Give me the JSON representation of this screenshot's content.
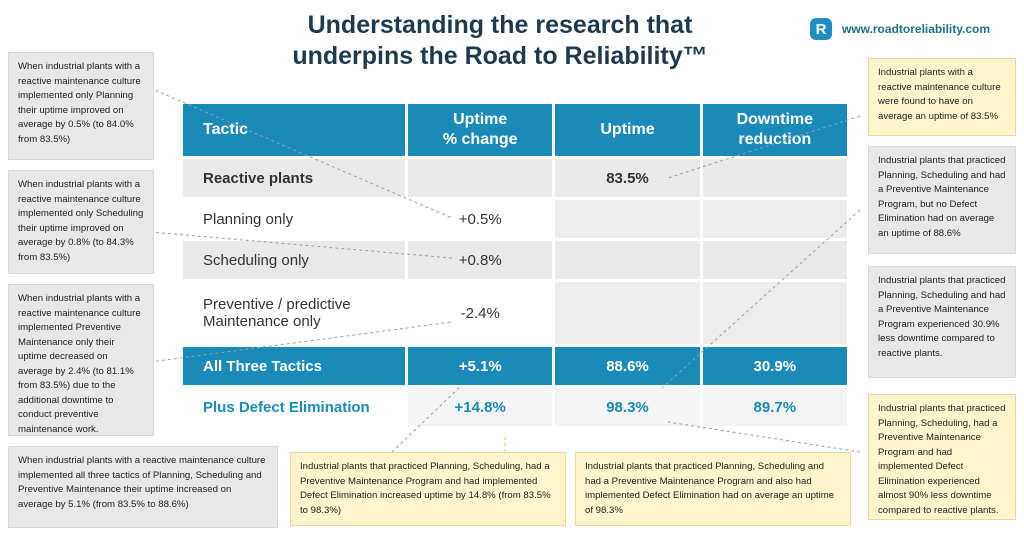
{
  "title": {
    "line1": "Understanding the research that",
    "line2": "underpins the Road to Reliability™"
  },
  "brand": {
    "logo_letter": "R",
    "url": "www.roadtoreliability.com"
  },
  "table": {
    "headers": [
      "Tactic",
      "Uptime\n% change",
      "Uptime",
      "Downtime\nreduction"
    ],
    "header_lines": [
      [
        "Tactic"
      ],
      [
        "Uptime",
        "% change"
      ],
      [
        "Uptime"
      ],
      [
        "Downtime",
        "reduction"
      ]
    ],
    "rows": [
      {
        "tactic": "Reactive plants",
        "change": "",
        "uptime": "83.5%",
        "reduction": ""
      },
      {
        "tactic": "Planning only",
        "change": "+0.5%",
        "uptime": "",
        "reduction": ""
      },
      {
        "tactic": "Scheduling only",
        "change": "+0.8%",
        "uptime": "",
        "reduction": ""
      },
      {
        "tactic_line1": "Preventive / predictive",
        "tactic_line2": "Maintenance only",
        "change": "-2.4%",
        "uptime": "",
        "reduction": ""
      },
      {
        "tactic": "All Three Tactics",
        "change": "+5.1%",
        "uptime": "88.6%",
        "reduction": "30.9%"
      },
      {
        "tactic": "Plus Defect Elimination",
        "change": "+14.8%",
        "uptime": "98.3%",
        "reduction": "89.7%"
      }
    ]
  },
  "notes": {
    "left_planning": "When industrial plants with a reactive maintenance culture implemented only Planning their uptime improved on average by 0.5% (to 84.0% from 83.5%)",
    "left_scheduling": "When industrial plants with a reactive maintenance culture implemented only Scheduling their uptime improved on average by 0.8% (to 84.3% from 83.5%)",
    "left_preventive": "When industrial plants with a reactive maintenance culture implemented Preventive Maintenance only their uptime decreased on average by 2.4% (to 81.1% from 83.5%) due to the additional downtime to conduct preventive maintenance work.",
    "left_all_three": "When industrial plants with a reactive maintenance culture implemented all three tactics of Planning, Scheduling and Preventive Maintenance their uptime increased on average by 5.1% (from 83.5% to 88.6%)",
    "bottom_increase": "Industrial plants that practiced Planning, Scheduling, had a Preventive Maintenance Program and had implemented Defect Elimination increased uptime by 14.8% (from 83.5% to 98.3%)",
    "bottom_uptime": "Industrial plants that practiced Planning, Scheduling and had a Preventive Maintenance Program and also had implemented Defect Elimination had on average an uptime of 98.3%",
    "right_reactive": "Industrial plants with a reactive maintenance culture were found to have on average an uptime of 83.5%",
    "right_all_three": "Industrial plants that practiced Planning, Scheduling and had a Preventive Maintenance Program, but no Defect Elimination had on average an uptime of 88.6%",
    "right_downtime": "Industrial plants that practiced Planning, Scheduling and had a Preventive Maintenance Program experienced 30.9% less downtime compared to reactive plants.",
    "right_defect": "Industrial plants that practiced Planning, Scheduling, had a Preventive Maintenance Program and had implemented Defect Elimination experienced almost 90% less downtime compared to reactive plants."
  },
  "colors": {
    "header_blue": "#1a8ab8",
    "title_navy": "#1e3a4f",
    "note_grey": "#e8e8e8",
    "note_yellow": "#fff5cc"
  }
}
